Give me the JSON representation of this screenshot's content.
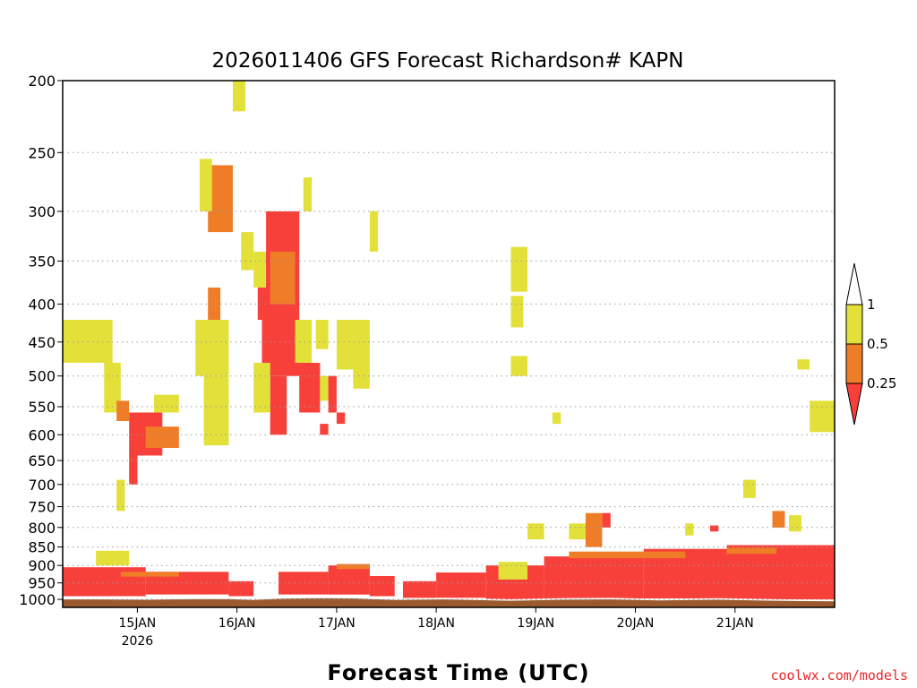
{
  "chart_data": {
    "type": "heatmap",
    "title": "2026011406 GFS Forecast Richardson# KAPN",
    "xlabel": "Forecast Time (UTC)",
    "ylabel": "",
    "y_axis": {
      "scale": "log",
      "inverted": true,
      "range": [
        1025,
        200
      ],
      "ticks": [
        "200",
        "250",
        "300",
        "350",
        "400",
        "450",
        "500",
        "550",
        "600",
        "650",
        "700",
        "750",
        "800",
        "850",
        "900",
        "950",
        "1000"
      ]
    },
    "x_axis": {
      "range_hours": [
        0,
        186
      ],
      "ticks": [
        {
          "hour": 18,
          "label": "15JAN",
          "sublabel": "2026"
        },
        {
          "hour": 42,
          "label": "16JAN"
        },
        {
          "hour": 66,
          "label": "17JAN"
        },
        {
          "hour": 90,
          "label": "18JAN"
        },
        {
          "hour": 114,
          "label": "19JAN"
        },
        {
          "hour": 138,
          "label": "20JAN"
        },
        {
          "hour": 162,
          "label": "21JAN"
        }
      ]
    },
    "grid": "dotted horizontal at pressure ticks",
    "legend": {
      "placement": "right",
      "labels": [
        "1",
        "0.5",
        "0.25"
      ],
      "bins": [
        {
          "range": "> 1",
          "color": "#ffffff"
        },
        {
          "range": "0.5 - 1",
          "color": "#e3e03a"
        },
        {
          "range": "0.25 - 0.5",
          "color": "#ef7d28"
        },
        {
          "range": "< 0.25",
          "color": "#f8403a"
        }
      ]
    },
    "colors": {
      "low": "#f8403a",
      "mid": "#ef7d28",
      "high": "#e3e03a",
      "ground": "#9b5a2e"
    },
    "surface_pressure": [
      [
        0,
        1000
      ],
      [
        8,
        1000
      ],
      [
        20,
        1001
      ],
      [
        32,
        999
      ],
      [
        40,
        999
      ],
      [
        46,
        1002
      ],
      [
        52,
        998
      ],
      [
        62,
        996
      ],
      [
        70,
        997
      ],
      [
        80,
        1002
      ],
      [
        92,
        1000
      ],
      [
        108,
        1004
      ],
      [
        120,
        1001
      ],
      [
        132,
        1000
      ],
      [
        144,
        1003
      ],
      [
        158,
        1001
      ],
      [
        172,
        1004
      ],
      [
        186,
        1006
      ]
    ],
    "regions": [
      {
        "bin": "low",
        "hours": [
          0,
          20
        ],
        "p": [
          905,
          990
        ]
      },
      {
        "bin": "low",
        "hours": [
          20,
          40
        ],
        "p": [
          918,
          985
        ]
      },
      {
        "bin": "low",
        "hours": [
          40,
          46
        ],
        "p": [
          945,
          990
        ]
      },
      {
        "bin": "low",
        "hours": [
          52,
          64
        ],
        "p": [
          918,
          985
        ]
      },
      {
        "bin": "low",
        "hours": [
          64,
          74
        ],
        "p": [
          900,
          985
        ]
      },
      {
        "bin": "low",
        "hours": [
          74,
          80
        ],
        "p": [
          930,
          990
        ]
      },
      {
        "bin": "low",
        "hours": [
          82,
          90
        ],
        "p": [
          945,
          995
        ]
      },
      {
        "bin": "low",
        "hours": [
          90,
          102
        ],
        "p": [
          920,
          995
        ]
      },
      {
        "bin": "low",
        "hours": [
          102,
          116
        ],
        "p": [
          900,
          1000
        ]
      },
      {
        "bin": "low",
        "hours": [
          116,
          140
        ],
        "p": [
          875,
          998
        ]
      },
      {
        "bin": "low",
        "hours": [
          140,
          160
        ],
        "p": [
          855,
          997
        ]
      },
      {
        "bin": "low",
        "hours": [
          160,
          186
        ],
        "p": [
          845,
          1000
        ]
      },
      {
        "bin": "mid",
        "hours": [
          14,
          28
        ],
        "p": [
          918,
          932
        ]
      },
      {
        "bin": "mid",
        "hours": [
          66,
          74
        ],
        "p": [
          896,
          910
        ]
      },
      {
        "bin": "mid",
        "hours": [
          122,
          150
        ],
        "p": [
          862,
          880
        ]
      },
      {
        "bin": "mid",
        "hours": [
          160,
          172
        ],
        "p": [
          852,
          868
        ]
      },
      {
        "bin": "high",
        "hours": [
          8,
          16
        ],
        "p": [
          860,
          900
        ]
      },
      {
        "bin": "high",
        "hours": [
          105,
          112
        ],
        "p": [
          890,
          940
        ]
      },
      {
        "bin": "high",
        "hours": [
          112,
          116
        ],
        "p": [
          790,
          830
        ]
      },
      {
        "bin": "high",
        "hours": [
          122,
          126
        ],
        "p": [
          790,
          830
        ]
      },
      {
        "bin": "mid",
        "hours": [
          126,
          130
        ],
        "p": [
          765,
          850
        ]
      },
      {
        "bin": "low",
        "hours": [
          130,
          132
        ],
        "p": [
          765,
          800
        ]
      },
      {
        "bin": "high",
        "hours": [
          150,
          152
        ],
        "p": [
          790,
          820
        ]
      },
      {
        "bin": "low",
        "hours": [
          156,
          158
        ],
        "p": [
          795,
          810
        ]
      },
      {
        "bin": "high",
        "hours": [
          164,
          167
        ],
        "p": [
          690,
          730
        ]
      },
      {
        "bin": "mid",
        "hours": [
          171,
          174
        ],
        "p": [
          760,
          800
        ]
      },
      {
        "bin": "high",
        "hours": [
          175,
          178
        ],
        "p": [
          770,
          810
        ]
      },
      {
        "bin": "high",
        "hours": [
          177,
          180
        ],
        "p": [
          475,
          490
        ]
      },
      {
        "bin": "high",
        "hours": [
          180,
          186
        ],
        "p": [
          540,
          595
        ]
      },
      {
        "bin": "high",
        "hours": [
          0,
          12
        ],
        "p": [
          420,
          480
        ]
      },
      {
        "bin": "high",
        "hours": [
          10,
          14
        ],
        "p": [
          480,
          560
        ]
      },
      {
        "bin": "mid",
        "hours": [
          13,
          16
        ],
        "p": [
          540,
          575
        ]
      },
      {
        "bin": "low",
        "hours": [
          16,
          24
        ],
        "p": [
          560,
          640
        ]
      },
      {
        "bin": "mid",
        "hours": [
          20,
          28
        ],
        "p": [
          585,
          625
        ]
      },
      {
        "bin": "high",
        "hours": [
          22,
          28
        ],
        "p": [
          530,
          560
        ]
      },
      {
        "bin": "low",
        "hours": [
          16,
          18
        ],
        "p": [
          640,
          700
        ]
      },
      {
        "bin": "high",
        "hours": [
          13,
          15
        ],
        "p": [
          690,
          760
        ]
      },
      {
        "bin": "high",
        "hours": [
          32,
          40
        ],
        "p": [
          420,
          500
        ]
      },
      {
        "bin": "mid",
        "hours": [
          35,
          38
        ],
        "p": [
          380,
          420
        ]
      },
      {
        "bin": "high",
        "hours": [
          34,
          40
        ],
        "p": [
          500,
          620
        ]
      },
      {
        "bin": "mid",
        "hours": [
          35,
          41
        ],
        "p": [
          260,
          320
        ]
      },
      {
        "bin": "high",
        "hours": [
          33,
          36
        ],
        "p": [
          255,
          300
        ]
      },
      {
        "bin": "high",
        "hours": [
          41,
          44
        ],
        "p": [
          200,
          220
        ]
      },
      {
        "bin": "high",
        "hours": [
          43,
          46
        ],
        "p": [
          320,
          360
        ]
      },
      {
        "bin": "high",
        "hours": [
          46,
          50
        ],
        "p": [
          340,
          380
        ]
      },
      {
        "bin": "low",
        "hours": [
          47,
          50
        ],
        "p": [
          380,
          420
        ]
      },
      {
        "bin": "low",
        "hours": [
          49,
          57
        ],
        "p": [
          300,
          420
        ]
      },
      {
        "bin": "mid",
        "hours": [
          50,
          56
        ],
        "p": [
          340,
          400
        ]
      },
      {
        "bin": "low",
        "hours": [
          48,
          58
        ],
        "p": [
          420,
          500
        ]
      },
      {
        "bin": "low",
        "hours": [
          50,
          54
        ],
        "p": [
          500,
          600
        ]
      },
      {
        "bin": "high",
        "hours": [
          46,
          50
        ],
        "p": [
          480,
          560
        ]
      },
      {
        "bin": "low",
        "hours": [
          57,
          62
        ],
        "p": [
          480,
          560
        ]
      },
      {
        "bin": "high",
        "hours": [
          56,
          60
        ],
        "p": [
          420,
          480
        ]
      },
      {
        "bin": "high",
        "hours": [
          58,
          60
        ],
        "p": [
          270,
          300
        ]
      },
      {
        "bin": "high",
        "hours": [
          61,
          64
        ],
        "p": [
          420,
          460
        ]
      },
      {
        "bin": "high",
        "hours": [
          62,
          64
        ],
        "p": [
          500,
          540
        ]
      },
      {
        "bin": "low",
        "hours": [
          64,
          66
        ],
        "p": [
          500,
          560
        ]
      },
      {
        "bin": "high",
        "hours": [
          66,
          70
        ],
        "p": [
          420,
          490
        ]
      },
      {
        "bin": "high",
        "hours": [
          70,
          74
        ],
        "p": [
          420,
          520
        ]
      },
      {
        "bin": "high",
        "hours": [
          74,
          76
        ],
        "p": [
          300,
          340
        ]
      },
      {
        "bin": "low",
        "hours": [
          66,
          68
        ],
        "p": [
          560,
          580
        ]
      },
      {
        "bin": "low",
        "hours": [
          62,
          64
        ],
        "p": [
          580,
          600
        ]
      },
      {
        "bin": "high",
        "hours": [
          108,
          112
        ],
        "p": [
          335,
          385
        ]
      },
      {
        "bin": "high",
        "hours": [
          108,
          111
        ],
        "p": [
          390,
          430
        ]
      },
      {
        "bin": "high",
        "hours": [
          108,
          112
        ],
        "p": [
          470,
          500
        ]
      },
      {
        "bin": "high",
        "hours": [
          118,
          120
        ],
        "p": [
          560,
          580
        ]
      }
    ]
  },
  "credit": "coolwx.com/models"
}
